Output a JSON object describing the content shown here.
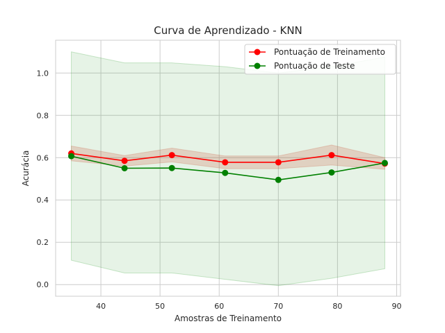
{
  "chart_data": {
    "type": "line",
    "title": "Curva de Aprendizado - KNN",
    "xlabel": "Amostras de Treinamento",
    "ylabel": "Acurácia",
    "xlim": [
      32.35,
      90.65
    ],
    "ylim": [
      -0.055,
      1.155
    ],
    "xticks": [
      40,
      50,
      60,
      70,
      80,
      90
    ],
    "yticks": [
      0.0,
      0.2,
      0.4,
      0.6,
      0.8,
      1.0
    ],
    "xtick_labels": [
      "40",
      "50",
      "60",
      "70",
      "80",
      "90"
    ],
    "ytick_labels": [
      "0.0",
      "0.2",
      "0.4",
      "0.6",
      "0.8",
      "1.0"
    ],
    "grid": true,
    "legend_position": "top-right",
    "x": [
      35,
      44,
      52,
      61,
      70,
      79,
      88
    ],
    "series": [
      {
        "name": "Pontuação de Treinamento",
        "color": "#ff0000",
        "band_color": "#cd5c3f",
        "values": [
          0.62,
          0.585,
          0.612,
          0.578,
          0.578,
          0.612,
          0.572
        ],
        "lower": [
          0.585,
          0.56,
          0.58,
          0.548,
          0.548,
          0.565,
          0.545
        ],
        "upper": [
          0.655,
          0.61,
          0.645,
          0.608,
          0.608,
          0.66,
          0.6
        ]
      },
      {
        "name": "Pontuação de Teste",
        "color": "#008000",
        "band_color": "#2e9e2e",
        "values": [
          0.607,
          0.55,
          0.551,
          0.528,
          0.495,
          0.53,
          0.575
        ],
        "lower": [
          0.115,
          0.055,
          0.055,
          0.025,
          -0.005,
          0.03,
          0.075
        ],
        "upper": [
          1.1,
          1.048,
          1.048,
          1.03,
          1.0,
          1.03,
          1.075
        ]
      }
    ]
  }
}
